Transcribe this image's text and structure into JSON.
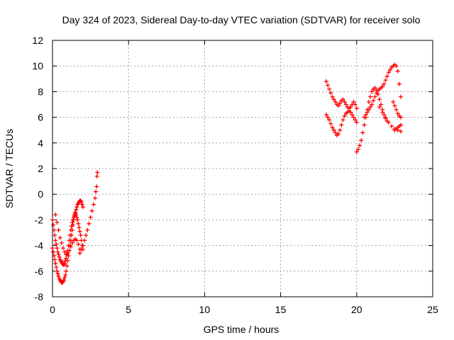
{
  "chart_data": {
    "type": "scatter",
    "title": "Day 324 of 2023, Sidereal Day-to-day VTEC variation (SDTVAR) for receiver solo",
    "xlabel": "GPS time / hours",
    "ylabel": "SDTVAR / TECUs",
    "xlim": [
      0,
      25
    ],
    "ylim": [
      -8,
      12
    ],
    "xticks": [
      0,
      5,
      10,
      15,
      20,
      25
    ],
    "yticks": [
      -8,
      -6,
      -4,
      -2,
      0,
      2,
      4,
      6,
      8,
      10,
      12
    ],
    "grid": true,
    "marker": "+",
    "series_color": "#ff0000",
    "series": [
      {
        "name": "SDTVAR",
        "x": [
          0.0,
          0.05,
          0.1,
          0.15,
          0.2,
          0.25,
          0.3,
          0.35,
          0.4,
          0.45,
          0.5,
          0.55,
          0.6,
          0.65,
          0.7,
          0.75,
          0.8,
          0.85,
          0.9,
          0.95,
          1.0,
          1.05,
          1.1,
          1.15,
          1.2,
          1.25,
          1.3,
          1.35,
          1.4,
          1.45,
          1.5,
          1.55,
          1.6,
          1.65,
          1.7,
          1.75,
          1.8,
          1.85,
          1.9,
          1.95,
          2.0,
          0.0,
          0.05,
          0.1,
          0.15,
          0.2,
          0.25,
          0.3,
          0.35,
          0.4,
          0.45,
          0.5,
          0.55,
          0.6,
          0.65,
          0.7,
          0.75,
          0.8,
          0.85,
          0.9,
          0.95,
          1.0,
          1.05,
          1.1,
          1.15,
          1.2,
          1.25,
          1.3,
          1.35,
          1.4,
          1.45,
          1.5,
          1.55,
          1.6,
          1.65,
          1.7,
          1.75,
          1.8,
          1.85,
          1.9,
          1.95,
          2.0,
          0.2,
          0.3,
          0.4,
          0.5,
          0.6,
          0.7,
          0.8,
          0.9,
          1.0,
          1.1,
          1.2,
          1.3,
          1.4,
          1.5,
          1.6,
          1.7,
          1.8,
          1.8,
          1.9,
          2.0,
          2.1,
          2.2,
          2.3,
          2.4,
          2.5,
          2.6,
          2.7,
          2.8,
          2.85,
          2.9,
          2.92,
          2.95,
          18.0,
          18.1,
          18.2,
          18.3,
          18.4,
          18.5,
          18.6,
          18.7,
          18.8,
          18.9,
          19.0,
          19.1,
          19.2,
          19.3,
          19.4,
          19.5,
          19.6,
          19.7,
          19.8,
          19.9,
          20.0,
          18.0,
          18.1,
          18.2,
          18.3,
          18.4,
          18.5,
          18.6,
          18.7,
          18.8,
          18.9,
          19.0,
          19.1,
          19.2,
          19.3,
          19.4,
          19.5,
          19.6,
          19.7,
          19.8,
          19.9,
          20.0,
          20.0,
          20.1,
          20.2,
          20.3,
          20.4,
          20.5,
          20.6,
          20.7,
          20.8,
          20.9,
          21.0,
          21.1,
          21.2,
          21.3,
          21.4,
          21.5,
          21.6,
          21.7,
          21.8,
          21.9,
          22.0,
          20.5,
          20.6,
          20.7,
          20.8,
          20.9,
          21.0,
          21.1,
          21.2,
          21.3,
          21.4,
          21.5,
          21.6,
          21.7,
          21.8,
          21.9,
          22.0,
          22.1,
          22.2,
          22.3,
          22.4,
          22.5,
          22.6,
          22.7,
          22.8,
          22.9,
          21.5,
          21.7,
          21.9,
          22.1,
          22.3,
          22.5,
          22.7,
          22.9,
          22.4,
          22.5,
          22.6,
          22.7,
          22.8,
          22.9,
          22.5,
          22.6,
          22.7,
          22.8,
          22.9
        ],
        "y": [
          -2.0,
          -2.4,
          -2.8,
          -3.2,
          -3.6,
          -3.9,
          -4.2,
          -4.5,
          -4.7,
          -4.9,
          -5.1,
          -5.2,
          -5.3,
          -5.4,
          -5.5,
          -5.5,
          -5.4,
          -5.2,
          -5.0,
          -4.7,
          -4.4,
          -4.0,
          -3.6,
          -3.2,
          -2.8,
          -2.5,
          -2.2,
          -2.0,
          -1.8,
          -1.6,
          -1.5,
          -1.6,
          -1.8,
          -2.0,
          -2.3,
          -2.6,
          -2.9,
          -3.2,
          -3.6,
          -4.0,
          -4.3,
          -4.2,
          -4.5,
          -4.8,
          -5.1,
          -5.4,
          -5.7,
          -6.0,
          -6.2,
          -6.4,
          -6.6,
          -6.7,
          -6.8,
          -6.9,
          -6.9,
          -6.8,
          -6.7,
          -6.5,
          -6.3,
          -6.0,
          -5.6,
          -5.2,
          -4.8,
          -4.4,
          -4.0,
          -3.6,
          -3.2,
          -2.8,
          -2.4,
          -2.0,
          -1.7,
          -1.4,
          -1.2,
          -1.0,
          -0.8,
          -0.7,
          -0.6,
          -0.5,
          -0.5,
          -0.6,
          -0.8,
          -1.0,
          -1.6,
          -2.2,
          -2.8,
          -3.4,
          -3.8,
          -4.2,
          -4.5,
          -4.7,
          -4.6,
          -4.4,
          -4.1,
          -3.8,
          -3.6,
          -3.5,
          -3.6,
          -3.9,
          -4.3,
          -4.6,
          -4.3,
          -4.0,
          -3.6,
          -3.2,
          -2.8,
          -2.3,
          -1.8,
          -1.3,
          -0.8,
          -0.3,
          0.2,
          0.6,
          1.4,
          1.7,
          8.8,
          8.5,
          8.2,
          7.9,
          7.6,
          7.4,
          7.2,
          7.0,
          6.9,
          7.1,
          7.3,
          7.4,
          7.2,
          7.0,
          6.8,
          6.7,
          6.8,
          7.0,
          7.2,
          7.0,
          6.7,
          6.2,
          6.0,
          5.8,
          5.5,
          5.2,
          5.0,
          4.8,
          4.6,
          4.7,
          5.0,
          5.4,
          5.8,
          6.1,
          6.3,
          6.4,
          6.5,
          6.4,
          6.2,
          6.0,
          5.8,
          5.6,
          3.3,
          3.5,
          3.8,
          4.2,
          4.8,
          5.4,
          6.0,
          6.6,
          7.2,
          7.6,
          8.0,
          8.2,
          8.3,
          8.1,
          7.8,
          7.4,
          7.0,
          6.6,
          6.2,
          5.9,
          5.7,
          6.0,
          6.2,
          6.4,
          6.6,
          6.8,
          7.0,
          7.3,
          7.6,
          7.9,
          8.1,
          8.2,
          8.3,
          8.4,
          8.6,
          8.9,
          9.2,
          9.5,
          9.7,
          9.9,
          10.0,
          10.1,
          10.0,
          9.6,
          8.6,
          7.6,
          6.8,
          6.4,
          6.0,
          5.6,
          5.3,
          5.1,
          5.0,
          4.9,
          7.2,
          6.9,
          6.6,
          6.3,
          6.1,
          6.0,
          5.0,
          5.1,
          5.2,
          5.3,
          5.4
        ]
      }
    ]
  }
}
